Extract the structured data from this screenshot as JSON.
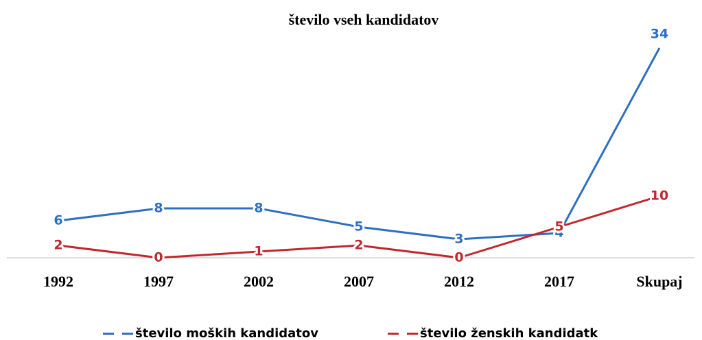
{
  "chart_data": {
    "type": "line",
    "title": "število vseh kandidatov",
    "categories": [
      "1992",
      "1997",
      "2002",
      "2007",
      "2012",
      "2017",
      "Skupaj"
    ],
    "series": [
      {
        "name": "število moških kandidatov",
        "color": "#2e6fc0",
        "values": [
          6,
          8,
          8,
          5,
          3,
          4,
          34
        ]
      },
      {
        "name": "število ženskih kandidatk",
        "color": "#c0282d",
        "values": [
          2,
          0,
          1,
          2,
          0,
          5,
          10
        ]
      }
    ],
    "ylim": [
      0,
      35
    ],
    "grid": false,
    "legend": "bottom"
  }
}
